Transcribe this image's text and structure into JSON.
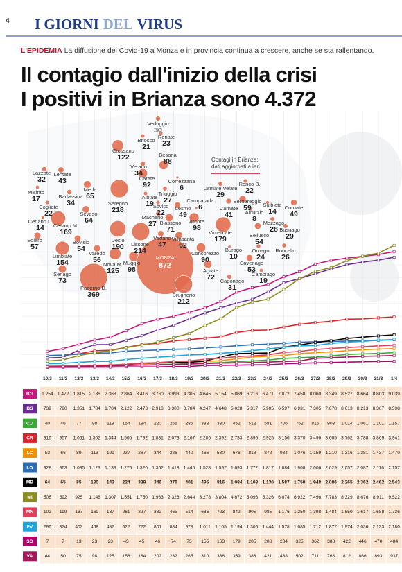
{
  "header": {
    "page": "4",
    "section": [
      "I GIORNI",
      "DEL",
      "VIRUS"
    ]
  },
  "kicker": {
    "label": "L'EPIDEMIA",
    "text": "La diffusione del Covid-19 a Monza e in provincia continua a crescere, anche se sta rallentando."
  },
  "title": [
    "Il contagio dall'inizio della crisi",
    "I positivi in Brianza sono 4.372"
  ],
  "map": {
    "note": [
      "Contagi in Brianza:",
      "dati aggiornati a ieri"
    ],
    "towns": [
      {
        "name": "Veduggio",
        "value": 30
      },
      {
        "name": "Briosco",
        "value": 21
      },
      {
        "name": "Renate",
        "value": 23
      },
      {
        "name": "Giussano",
        "value": 122
      },
      {
        "name": "Besana",
        "value": 88
      },
      {
        "name": "Verano",
        "value": 34
      },
      {
        "name": "Carate",
        "value": 92
      },
      {
        "name": "Correzzana",
        "value": 6
      },
      {
        "name": "Triuggio",
        "value": 27
      },
      {
        "name": "Albiate",
        "value": 19
      },
      {
        "name": "Lazzate",
        "value": 32
      },
      {
        "name": "Lentate",
        "value": 43
      },
      {
        "name": "Misinto",
        "value": 17
      },
      {
        "name": "Barlassina",
        "value": 34
      },
      {
        "name": "Meda",
        "value": 65
      },
      {
        "name": "Cogliate",
        "value": 22
      },
      {
        "name": "Seveso",
        "value": 64
      },
      {
        "name": "Seregno",
        "value": 218
      },
      {
        "name": "Ceriano L.",
        "value": 14
      },
      {
        "name": "Solaro",
        "value": 57
      },
      {
        "name": "Cesano M.",
        "value": 169
      },
      {
        "name": "Bovisio",
        "value": 54
      },
      {
        "name": "Desio",
        "value": 190
      },
      {
        "name": "Sovico",
        "value": 22
      },
      {
        "name": "Macherio",
        "value": 27
      },
      {
        "name": "Lesmo",
        "value": 49
      },
      {
        "name": "Camparada",
        "value": 6
      },
      {
        "name": "Biassono",
        "value": 71
      },
      {
        "name": "Arcore",
        "value": 98
      },
      {
        "name": "Lissone",
        "value": 214
      },
      {
        "name": "Vedano",
        "value": 47
      },
      {
        "name": "Villasanta",
        "value": 62
      },
      {
        "name": "Usmate Velate",
        "value": 29
      },
      {
        "name": "Ronco B.",
        "value": 22
      },
      {
        "name": "Bernareggio",
        "value": 59
      },
      {
        "name": "Carnate",
        "value": 41
      },
      {
        "name": "Aicurzio",
        "value": 8
      },
      {
        "name": "Sulbiate",
        "value": 14
      },
      {
        "name": "Cornate",
        "value": 49
      },
      {
        "name": "Mezzago",
        "value": 28
      },
      {
        "name": "Vimercate",
        "value": 179
      },
      {
        "name": "Bellusco",
        "value": 54
      },
      {
        "name": "Busnago",
        "value": 29
      },
      {
        "name": "Limbiate",
        "value": 154
      },
      {
        "name": "Varedo",
        "value": 56
      },
      {
        "name": "Nova M.",
        "value": 125
      },
      {
        "name": "Muggiò",
        "value": 98
      },
      {
        "name": "MONZA",
        "value": 872
      },
      {
        "name": "Concorezzo",
        "value": 90
      },
      {
        "name": "Burago",
        "value": 10
      },
      {
        "name": "Ornago",
        "value": 24
      },
      {
        "name": "Cavenago",
        "value": 53
      },
      {
        "name": "Roncello",
        "value": 26
      },
      {
        "name": "Agrate",
        "value": 72
      },
      {
        "name": "Senago",
        "value": 73
      },
      {
        "name": "Cambiago",
        "value": 19
      },
      {
        "name": "Caponago",
        "value": 31
      },
      {
        "name": "Paderno D.",
        "value": 369
      },
      {
        "name": "Brugherio",
        "value": 212
      }
    ]
  },
  "table": {
    "dates": [
      "10/3",
      "11/3",
      "12/3",
      "13/3",
      "14/3",
      "15/3",
      "16/3",
      "17/3",
      "18/3",
      "19/3",
      "20/3",
      "21/3",
      "22/3",
      "23/3",
      "24/3",
      "25/3",
      "26/3",
      "27/3",
      "28/3",
      "29/3",
      "30/3",
      "31/3",
      "1/4"
    ],
    "rows": [
      {
        "code": "BG",
        "color": "#c2187a",
        "values": [
          "1.254",
          "1.472",
          "1.815",
          "2.136",
          "2.368",
          "2.864",
          "3.416",
          "3.760",
          "3.993",
          "4.305",
          "4.645",
          "5.154",
          "5.869",
          "6.216",
          "6.471",
          "7.072",
          "7.458",
          "8.060",
          "8.349",
          "8.527",
          "8.664",
          "8.803",
          "9.039"
        ]
      },
      {
        "code": "BS",
        "color": "#6a2c91",
        "values": [
          "739",
          "790",
          "1.351",
          "1.784",
          "1.784",
          "2.122",
          "2.473",
          "2.918",
          "3.300",
          "3.784",
          "4.247",
          "4.648",
          "5.028",
          "5.317",
          "5.905",
          "6.597",
          "6.931",
          "7.305",
          "7.678",
          "8.013",
          "8.213",
          "8.367",
          "8.598"
        ]
      },
      {
        "code": "CO",
        "color": "#3aaa35",
        "values": [
          "40",
          "46",
          "77",
          "98",
          "118",
          "154",
          "184",
          "220",
          "256",
          "286",
          "338",
          "380",
          "452",
          "512",
          "581",
          "706",
          "762",
          "816",
          "903",
          "1.014",
          "1.061",
          "1.101",
          "1.157"
        ]
      },
      {
        "code": "CR",
        "color": "#d8232a",
        "values": [
          "916",
          "957",
          "1.061",
          "1.302",
          "1.344",
          "1.565",
          "1.792",
          "1.881",
          "2.073",
          "2.167",
          "2.286",
          "2.392",
          "2.733",
          "2.895",
          "2.925",
          "3.156",
          "3.370",
          "3.496",
          "3.605",
          "3.762",
          "3.788",
          "3.869",
          "3.941"
        ]
      },
      {
        "code": "LC",
        "color": "#f39200",
        "values": [
          "53",
          "66",
          "89",
          "113",
          "199",
          "237",
          "287",
          "344",
          "386",
          "440",
          "466",
          "530",
          "676",
          "818",
          "872",
          "934",
          "1.076",
          "1.159",
          "1.210",
          "1.316",
          "1.381",
          "1.437",
          "1.470"
        ]
      },
      {
        "code": "LO",
        "color": "#2d6db5",
        "values": [
          "928",
          "963",
          "1.035",
          "1.123",
          "1.133",
          "1.276",
          "1.320",
          "1.362",
          "1.418",
          "1.445",
          "1.528",
          "1.597",
          "1.693",
          "1.772",
          "1.817",
          "1.884",
          "1.968",
          "2.006",
          "2.029",
          "2.057",
          "2.087",
          "2.116",
          "2.157"
        ]
      },
      {
        "code": "MB",
        "color": "#000000",
        "values": [
          "64",
          "65",
          "85",
          "130",
          "143",
          "224",
          "339",
          "346",
          "376",
          "401",
          "495",
          "816",
          "1.084",
          "1.108",
          "1.130",
          "1.587",
          "1.750",
          "1.948",
          "2.086",
          "2.265",
          "2.362",
          "2.462",
          "2.543"
        ]
      },
      {
        "code": "MI",
        "color": "#8c8c1e",
        "values": [
          "506",
          "592",
          "925",
          "1.146",
          "1.307",
          "1.551",
          "1.750",
          "1.983",
          "2.326",
          "2.644",
          "3.278",
          "3.804",
          "4.672",
          "5.096",
          "5.326",
          "6.074",
          "6.922",
          "7.496",
          "7.783",
          "8.329",
          "8.676",
          "8.911",
          "9.522"
        ]
      },
      {
        "code": "MN",
        "color": "#e0405a",
        "values": [
          "102",
          "119",
          "137",
          "169",
          "187",
          "261",
          "327",
          "382",
          "465",
          "514",
          "636",
          "723",
          "842",
          "905",
          "985",
          "1.176",
          "1.250",
          "1.398",
          "1.484",
          "1.550",
          "1.617",
          "1.688",
          "1.736"
        ]
      },
      {
        "code": "PV",
        "color": "#1fa3d8",
        "values": [
          "296",
          "324",
          "403",
          "468",
          "482",
          "622",
          "722",
          "801",
          "884",
          "978",
          "1.011",
          "1.105",
          "1.194",
          "1.306",
          "1.444",
          "1.578",
          "1.685",
          "1.712",
          "1.877",
          "1.974",
          "2.036",
          "2.133",
          "2.180"
        ]
      },
      {
        "code": "SO",
        "color": "#b4006e",
        "values": [
          "7",
          "7",
          "13",
          "23",
          "23",
          "45",
          "45",
          "46",
          "74",
          "75",
          "155",
          "163",
          "179",
          "205",
          "208",
          "284",
          "325",
          "362",
          "388",
          "422",
          "446",
          "470",
          "484"
        ]
      },
      {
        "code": "VA",
        "color": "#a3195b",
        "values": [
          "44",
          "50",
          "75",
          "98",
          "125",
          "158",
          "184",
          "202",
          "232",
          "265",
          "310",
          "338",
          "359",
          "386",
          "421",
          "468",
          "502",
          "711",
          "768",
          "812",
          "866",
          "893",
          "937"
        ]
      }
    ]
  }
}
